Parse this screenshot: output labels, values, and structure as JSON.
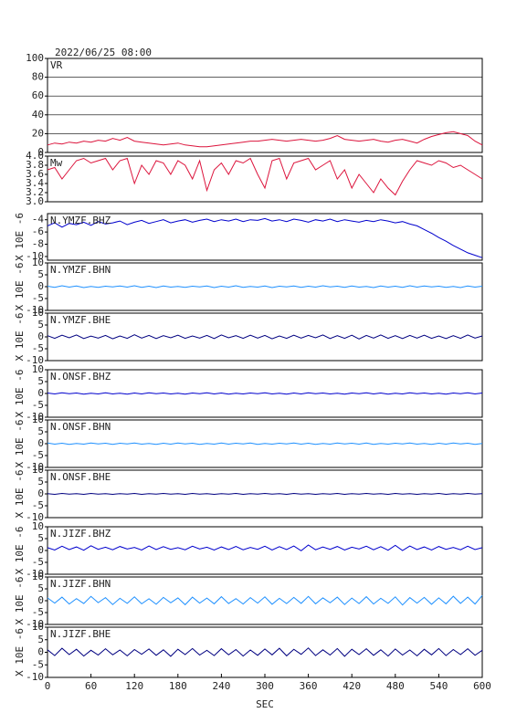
{
  "chart_data": {
    "type": "line",
    "title": "2022/06/25 08:00",
    "xlabel": "SEC",
    "xlim": [
      0,
      600
    ],
    "xticks": [
      0,
      60,
      120,
      180,
      240,
      300,
      360,
      420,
      480,
      540,
      600
    ],
    "x": [
      0,
      10,
      20,
      30,
      40,
      50,
      60,
      70,
      80,
      90,
      100,
      110,
      120,
      130,
      140,
      150,
      160,
      170,
      180,
      190,
      200,
      210,
      220,
      230,
      240,
      250,
      260,
      270,
      280,
      290,
      300,
      310,
      320,
      330,
      340,
      350,
      360,
      370,
      380,
      390,
      400,
      410,
      420,
      430,
      440,
      450,
      460,
      470,
      480,
      490,
      500,
      510,
      520,
      530,
      540,
      550,
      560,
      570,
      580,
      590,
      600
    ],
    "panels": [
      {
        "ylim": [
          0,
          100
        ],
        "yticks": [
          0,
          20,
          40,
          60,
          80,
          100
        ],
        "grid": true,
        "series": [
          {
            "name": "VR",
            "color": "#dc143c",
            "values": [
              8,
              10,
              9,
              11,
              10,
              12,
              11,
              13,
              12,
              15,
              13,
              16,
              12,
              11,
              10,
              9,
              8,
              9,
              10,
              8,
              7,
              6,
              6,
              7,
              8,
              9,
              10,
              11,
              12,
              12,
              13,
              14,
              13,
              12,
              13,
              14,
              13,
              12,
              13,
              15,
              18,
              14,
              13,
              12,
              13,
              14,
              12,
              11,
              13,
              14,
              12,
              10,
              14,
              17,
              19,
              21,
              22,
              20,
              18,
              12,
              8
            ]
          }
        ]
      },
      {
        "ylim": [
          3,
          4
        ],
        "yticks": [
          {
            "value": 3,
            "label": "3.0"
          },
          3.2,
          3.4,
          3.6,
          3.8,
          {
            "value": 4,
            "label": "4.0"
          }
        ],
        "grid": false,
        "series": [
          {
            "name": "Mw",
            "color": "#dc143c",
            "values": [
              3.7,
              3.75,
              3.5,
              3.7,
              3.9,
              3.95,
              3.85,
              3.9,
              3.95,
              3.7,
              3.9,
              3.95,
              3.4,
              3.8,
              3.6,
              3.9,
              3.85,
              3.6,
              3.9,
              3.8,
              3.5,
              3.9,
              3.25,
              3.7,
              3.85,
              3.6,
              3.9,
              3.85,
              3.95,
              3.6,
              3.3,
              3.9,
              3.95,
              3.5,
              3.85,
              3.9,
              3.95,
              3.7,
              3.8,
              3.9,
              3.5,
              3.7,
              3.3,
              3.6,
              3.4,
              3.2,
              3.5,
              3.3,
              3.15,
              3.45,
              3.7,
              3.9,
              3.85,
              3.8,
              3.9,
              3.85,
              3.75,
              3.8,
              3.7,
              3.6,
              3.5
            ]
          }
        ]
      },
      {
        "ylabel": "X 10E -6",
        "ylim": [
          -10.6,
          -3
        ],
        "yticks": [
          -10,
          -8,
          -6,
          -4
        ],
        "grid": false,
        "series": [
          {
            "name": "N.YMZF.BHZ",
            "color": "#0000cd",
            "values": [
              -5,
              -4.5,
              -5.2,
              -4.6,
              -4.8,
              -4.4,
              -4.9,
              -4.3,
              -4.7,
              -4.5,
              -4.2,
              -4.8,
              -4.4,
              -4.1,
              -4.6,
              -4.3,
              -4.0,
              -4.5,
              -4.2,
              -4.0,
              -4.4,
              -4.1,
              -3.9,
              -4.3,
              -4.0,
              -4.2,
              -3.9,
              -4.3,
              -4.0,
              -4.1,
              -3.8,
              -4.2,
              -4.0,
              -4.3,
              -3.9,
              -4.1,
              -4.4,
              -4.0,
              -4.2,
              -3.9,
              -4.3,
              -4.0,
              -4.2,
              -4.4,
              -4.1,
              -4.3,
              -4.0,
              -4.2,
              -4.5,
              -4.3,
              -4.7,
              -5.0,
              -5.6,
              -6.2,
              -6.9,
              -7.5,
              -8.2,
              -8.8,
              -9.4,
              -9.8,
              -10.2
            ]
          }
        ]
      },
      {
        "ylabel": "X 10E -6",
        "ylim": [
          -10,
          10
        ],
        "yticks": [
          -10,
          -5,
          0,
          5,
          10
        ],
        "grid": false,
        "series": [
          {
            "name": "N.YMZF.BHN",
            "color": "#1e90ff",
            "values": [
              0.2,
              -0.3,
              0.4,
              -0.2,
              0.3,
              -0.4,
              0.1,
              -0.3,
              0.2,
              -0.1,
              0.3,
              -0.2,
              0.4,
              -0.3,
              0.2,
              -0.4,
              0.3,
              -0.2,
              0.1,
              -0.3,
              0.2,
              -0.1,
              0.3,
              -0.4,
              0.2,
              -0.2,
              0.4,
              -0.3,
              0.1,
              -0.2,
              0.3,
              -0.4,
              0.2,
              -0.1,
              0.3,
              -0.3,
              0.2,
              -0.2,
              0.4,
              -0.1,
              0.2,
              -0.3,
              0.3,
              -0.2,
              0.1,
              -0.4,
              0.3,
              -0.2,
              0.2,
              -0.3,
              0.4,
              -0.2,
              0.3,
              -0.1,
              0.2,
              -0.3,
              0.1,
              -0.4,
              0.3,
              -0.2,
              0.2
            ]
          }
        ]
      },
      {
        "ylabel": "X 10E -6",
        "ylim": [
          -10,
          10
        ],
        "yticks": [
          -10,
          -5,
          0,
          5,
          10
        ],
        "grid": false,
        "series": [
          {
            "name": "N.YMZF.BHE",
            "color": "#000080",
            "values": [
              0.5,
              -0.6,
              0.7,
              -0.4,
              0.8,
              -0.7,
              0.3,
              -0.5,
              0.6,
              -0.8,
              0.4,
              -0.6,
              0.9,
              -0.5,
              0.6,
              -0.7,
              0.5,
              -0.4,
              0.7,
              -0.6,
              0.4,
              -0.5,
              0.6,
              -0.7,
              0.8,
              -0.4,
              0.5,
              -0.6,
              0.7,
              -0.5,
              0.6,
              -0.8,
              0.4,
              -0.6,
              0.7,
              -0.5,
              0.6,
              -0.4,
              0.8,
              -0.7,
              0.5,
              -0.6,
              0.7,
              -0.9,
              0.6,
              -0.5,
              0.8,
              -0.6,
              0.5,
              -0.7,
              0.6,
              -0.5,
              0.7,
              -0.6,
              0.4,
              -0.7,
              0.5,
              -0.6,
              0.8,
              -0.5,
              0.4
            ]
          }
        ]
      },
      {
        "ylabel": "X 10E -6",
        "ylim": [
          -10,
          10
        ],
        "yticks": [
          -10,
          -5,
          0,
          5,
          10
        ],
        "grid": false,
        "series": [
          {
            "name": "N.ONSF.BHZ",
            "color": "#0000cd",
            "values": [
              0.2,
              -0.2,
              0.3,
              -0.1,
              0.2,
              -0.3,
              0.1,
              -0.2,
              0.3,
              -0.2,
              0.1,
              -0.3,
              0.2,
              -0.2,
              0.3,
              -0.1,
              0.2,
              -0.2,
              0.1,
              -0.3,
              0.2,
              -0.1,
              0.3,
              -0.2,
              0.2,
              -0.3,
              0.1,
              -0.2,
              0.2,
              -0.1,
              0.3,
              -0.2,
              0.1,
              -0.3,
              0.2,
              -0.2,
              0.3,
              -0.1,
              0.2,
              -0.2,
              0.1,
              -0.3,
              0.2,
              -0.1,
              0.3,
              -0.2,
              0.2,
              -0.3,
              0.1,
              -0.2,
              0.3,
              -0.1,
              0.2,
              -0.2,
              0.1,
              -0.3,
              0.2,
              -0.1,
              0.3,
              -0.2,
              0.2
            ]
          }
        ]
      },
      {
        "ylabel": "X 10E -6",
        "ylim": [
          -10,
          10
        ],
        "yticks": [
          -10,
          -5,
          0,
          5,
          10
        ],
        "grid": false,
        "series": [
          {
            "name": "N.ONSF.BHN",
            "color": "#1e90ff",
            "values": [
              0.3,
              -0.2,
              0.2,
              -0.3,
              0.1,
              -0.2,
              0.3,
              -0.1,
              0.2,
              -0.3,
              0.2,
              -0.1,
              0.3,
              -0.2,
              0.1,
              -0.3,
              0.2,
              -0.2,
              0.3,
              -0.1,
              0.2,
              -0.3,
              0.1,
              -0.2,
              0.3,
              -0.2,
              0.2,
              -0.1,
              0.3,
              -0.3,
              0.1,
              -0.2,
              0.2,
              -0.1,
              0.3,
              -0.2,
              0.2,
              -0.3,
              0.1,
              -0.2,
              0.3,
              -0.1,
              0.2,
              -0.2,
              0.3,
              -0.3,
              0.1,
              -0.2,
              0.2,
              -0.1,
              0.3,
              -0.2,
              0.1,
              -0.3,
              0.2,
              -0.2,
              0.3,
              -0.1,
              0.2,
              -0.3,
              0.1
            ]
          }
        ]
      },
      {
        "ylabel": "X 10E -6",
        "ylim": [
          -10,
          10
        ],
        "yticks": [
          -10,
          -5,
          0,
          5,
          10
        ],
        "grid": false,
        "series": [
          {
            "name": "N.ONSF.BHE",
            "color": "#000080",
            "values": [
              0.1,
              -0.2,
              0.2,
              -0.1,
              0.1,
              -0.2,
              0.2,
              -0.1,
              0.1,
              -0.2,
              0.1,
              -0.1,
              0.2,
              -0.2,
              0.1,
              -0.1,
              0.2,
              -0.1,
              0.1,
              -0.2,
              0.2,
              -0.1,
              0.1,
              -0.2,
              0.1,
              -0.1,
              0.2,
              -0.2,
              0.1,
              -0.1,
              0.2,
              -0.1,
              0.1,
              -0.2,
              0.2,
              -0.1,
              0.1,
              -0.2,
              0.1,
              -0.1,
              0.2,
              -0.2,
              0.1,
              -0.1,
              0.2,
              -0.1,
              0.1,
              -0.2,
              0.2,
              -0.1,
              0.1,
              -0.2,
              0.1,
              -0.1,
              0.2,
              -0.2,
              0.1,
              -0.1,
              0.2,
              -0.1,
              0.1
            ]
          }
        ]
      },
      {
        "ylabel": "X 10E -6",
        "ylim": [
          -10,
          10
        ],
        "yticks": [
          -10,
          -5,
          0,
          5,
          10
        ],
        "grid": false,
        "series": [
          {
            "name": "N.JIZF.BHZ",
            "color": "#0000cd",
            "values": [
              1.2,
              0.2,
              1.8,
              0.4,
              1.5,
              0.1,
              2.0,
              0.5,
              1.4,
              0.3,
              1.7,
              0.6,
              1.3,
              0.2,
              1.9,
              0.4,
              1.6,
              0.5,
              1.2,
              0.3,
              1.8,
              0.6,
              1.4,
              0.2,
              1.5,
              0.4,
              1.7,
              0.3,
              1.3,
              0.5,
              1.8,
              0.2,
              1.6,
              0.4,
              1.9,
              -0.1,
              2.3,
              0.3,
              1.5,
              0.5,
              1.7,
              0.2,
              1.4,
              0.6,
              1.8,
              0.3,
              1.6,
              0.1,
              2.2,
              0.0,
              1.9,
              0.4,
              1.5,
              0.2,
              1.7,
              0.5,
              1.3,
              0.3,
              1.8,
              0.4,
              1.2
            ]
          }
        ]
      },
      {
        "ylabel": "X 10E -6",
        "ylim": [
          -10,
          10
        ],
        "yticks": [
          -10,
          -5,
          0,
          5,
          10
        ],
        "grid": false,
        "series": [
          {
            "name": "N.JIZF.BHN",
            "color": "#1e90ff",
            "values": [
              1.2,
              -1.0,
              1.5,
              -1.4,
              0.9,
              -1.2,
              1.8,
              -0.8,
              1.3,
              -1.6,
              1.0,
              -1.1,
              1.6,
              -1.3,
              0.8,
              -1.5,
              1.4,
              -0.9,
              1.2,
              -1.7,
              1.5,
              -1.0,
              1.1,
              -1.3,
              1.7,
              -1.2,
              0.9,
              -1.4,
              1.3,
              -1.0,
              1.6,
              -1.5,
              1.0,
              -1.2,
              1.4,
              -1.1,
              1.8,
              -1.3,
              1.2,
              -0.9,
              1.5,
              -1.6,
              1.1,
              -1.2,
              1.7,
              -1.4,
              1.0,
              -1.1,
              1.6,
              -1.8,
              1.3,
              -1.0,
              1.4,
              -1.5,
              1.2,
              -1.3,
              1.9,
              -1.1,
              1.5,
              -1.4,
              2.2
            ]
          }
        ]
      },
      {
        "ylabel": "X 10E -6",
        "ylim": [
          -10,
          10
        ],
        "yticks": [
          -10,
          -5,
          0,
          5,
          10
        ],
        "grid": false,
        "series": [
          {
            "name": "N.JIZF.BHE",
            "color": "#000080",
            "values": [
              1.0,
              -1.3,
              1.6,
              -0.9,
              1.2,
              -1.5,
              0.8,
              -1.1,
              1.4,
              -1.0,
              0.9,
              -1.4,
              1.1,
              -0.8,
              1.3,
              -1.2,
              1.0,
              -1.6,
              1.2,
              -0.9,
              1.5,
              -1.1,
              0.8,
              -1.3,
              1.4,
              -1.0,
              1.1,
              -1.5,
              0.9,
              -1.2,
              1.3,
              -1.0,
              1.6,
              -1.4,
              1.2,
              -0.8,
              1.7,
              -1.3,
              1.0,
              -1.1,
              1.5,
              -1.6,
              1.2,
              -0.9,
              1.4,
              -1.2,
              1.0,
              -1.5,
              1.3,
              -1.1,
              0.9,
              -1.4,
              1.2,
              -1.0,
              1.5,
              -1.3,
              1.1,
              -0.9,
              1.4,
              -1.2,
              0.8
            ]
          }
        ]
      }
    ]
  }
}
